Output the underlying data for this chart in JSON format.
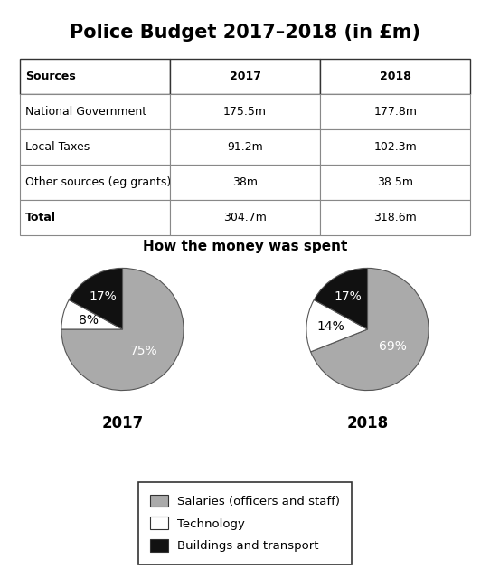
{
  "title": "Police Budget 2017–2018 (in £m)",
  "table_headers": [
    "Sources",
    "2017",
    "2018"
  ],
  "table_rows": [
    [
      "National Government",
      "175.5m",
      "177.8m"
    ],
    [
      "Local Taxes",
      "91.2m",
      "102.3m"
    ],
    [
      "Other sources (eg grants)",
      "38m",
      "38.5m"
    ],
    [
      "Total",
      "304.7m",
      "318.6m"
    ]
  ],
  "pie_title": "How the money was spent",
  "pie_2017": [
    75,
    8,
    17
  ],
  "pie_2018": [
    69,
    14,
    17
  ],
  "pie_labels_2017": [
    "75%",
    "8%",
    "17%"
  ],
  "pie_labels_2018": [
    "69%",
    "14%",
    "17%"
  ],
  "pie_colors": [
    "#aaaaaa",
    "#ffffff",
    "#111111"
  ],
  "pie_label_colors_2017": [
    "white",
    "black",
    "white"
  ],
  "pie_label_colors_2018": [
    "white",
    "black",
    "white"
  ],
  "pie_year_labels": [
    "2017",
    "2018"
  ],
  "legend_labels": [
    "Salaries (officers and staff)",
    "Technology",
    "Buildings and transport"
  ],
  "legend_colors": [
    "#aaaaaa",
    "#ffffff",
    "#111111"
  ],
  "bg_color": "#ffffff"
}
